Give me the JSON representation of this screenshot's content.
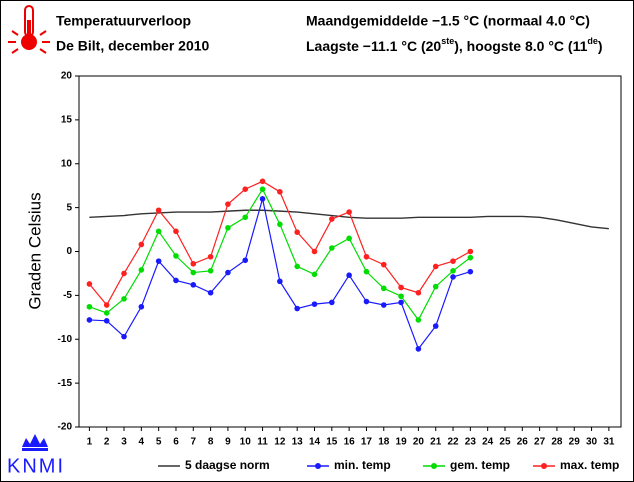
{
  "chart_data": {
    "type": "line",
    "title": "Temperatuurverloop",
    "subtitle": "De Bilt, december 2010",
    "annotation": "Maandgemiddelde −1.5 °C (normaal 4.0 °C)",
    "annotation_parts": [
      "Laagste −11.1 °C (20",
      "ste",
      "), hoogste 8.0 °C (11",
      "de",
      ")"
    ],
    "ylabel": "Graden Celsius",
    "logo": "KNMI",
    "x": [
      1,
      2,
      3,
      4,
      5,
      6,
      7,
      8,
      9,
      10,
      11,
      12,
      13,
      14,
      15,
      16,
      17,
      18,
      19,
      20,
      21,
      22,
      23,
      24,
      25,
      26,
      27,
      28,
      29,
      30,
      31
    ],
    "xlim": [
      0.4,
      31.7
    ],
    "xticks": [
      1,
      2,
      3,
      4,
      5,
      6,
      7,
      8,
      9,
      10,
      11,
      12,
      13,
      14,
      15,
      16,
      17,
      18,
      19,
      20,
      21,
      22,
      23,
      24,
      25,
      26,
      27,
      28,
      29,
      30,
      31
    ],
    "ylim": [
      -20,
      20
    ],
    "yticks": [
      20,
      15,
      10,
      5,
      0,
      -5,
      -10,
      -15,
      -20
    ],
    "series": [
      {
        "name": "5 daagse norm",
        "color": "#333333",
        "markers": false,
        "values": [
          3.9,
          4.0,
          4.1,
          4.3,
          4.4,
          4.5,
          4.5,
          4.5,
          4.6,
          4.7,
          4.7,
          4.6,
          4.5,
          4.3,
          4.1,
          3.9,
          3.8,
          3.8,
          3.8,
          3.9,
          3.9,
          3.9,
          3.9,
          4.0,
          4.0,
          4.0,
          3.9,
          3.6,
          3.2,
          2.8,
          2.6
        ]
      },
      {
        "name": "min. temp",
        "color": "#1a1aff",
        "markers": true,
        "values": [
          -7.8,
          -7.9,
          -9.7,
          -6.3,
          -1.1,
          -3.3,
          -3.8,
          -4.7,
          -2.4,
          -1.0,
          6.0,
          -3.4,
          -6.5,
          -6.0,
          -5.8,
          -2.7,
          -5.7,
          -6.1,
          -5.8,
          -11.1,
          -8.5,
          -2.9,
          -2.3,
          null,
          null,
          null,
          null,
          null,
          null,
          null,
          null
        ]
      },
      {
        "name": "gem. temp",
        "color": "#00dd00",
        "markers": true,
        "values": [
          -6.3,
          -7.0,
          -5.4,
          -2.1,
          2.3,
          -0.5,
          -2.4,
          -2.2,
          2.7,
          3.9,
          7.1,
          3.1,
          -1.7,
          -2.6,
          0.4,
          1.5,
          -2.3,
          -4.2,
          -5.1,
          -7.8,
          -4.0,
          -2.2,
          -0.7,
          null,
          null,
          null,
          null,
          null,
          null,
          null,
          null
        ]
      },
      {
        "name": "max. temp",
        "color": "#ff2020",
        "markers": true,
        "values": [
          -3.7,
          -6.1,
          -2.5,
          0.8,
          4.7,
          2.3,
          -1.4,
          -0.6,
          5.4,
          7.1,
          8.0,
          6.8,
          2.2,
          0.0,
          3.7,
          4.5,
          -0.6,
          -1.5,
          -4.1,
          -4.7,
          -1.7,
          -1.1,
          0.0,
          null,
          null,
          null,
          null,
          null,
          null,
          null,
          null
        ]
      }
    ]
  }
}
